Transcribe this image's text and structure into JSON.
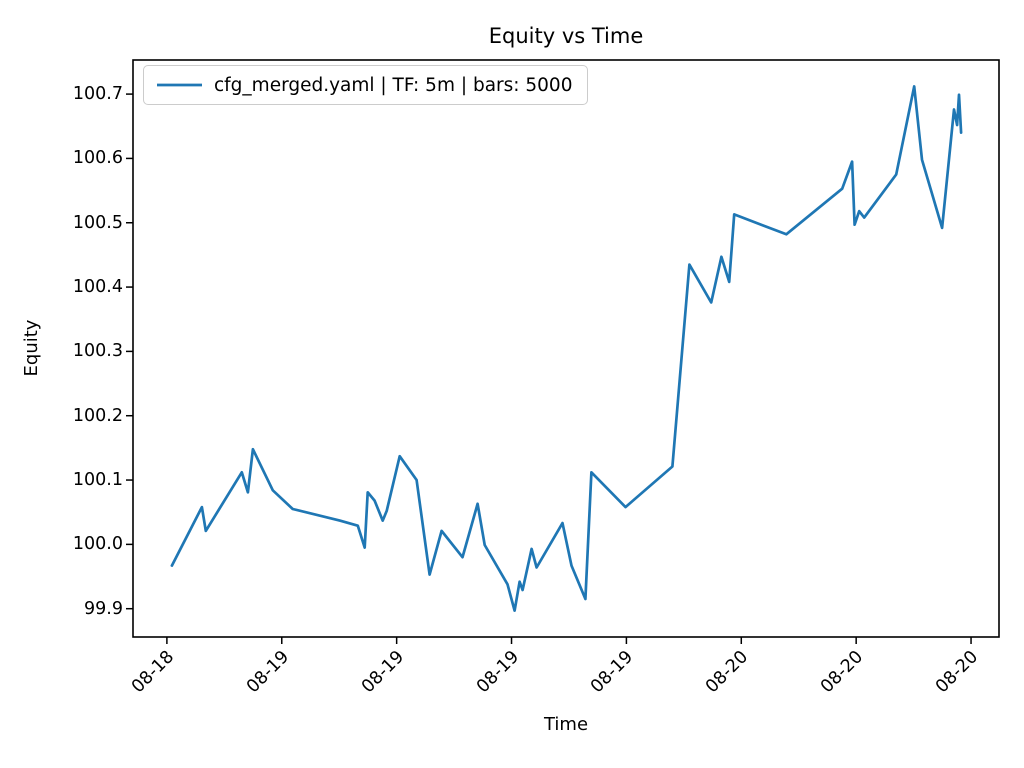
{
  "figure": {
    "title": "Equity vs Time",
    "xlabel": "Time",
    "ylabel": "Equity",
    "legend": {
      "label": "cfg_merged.yaml | TF: 5m | bars: 5000"
    },
    "colors": {
      "line": "#1f77b4",
      "spine": "#000000",
      "text": "#000000",
      "legend_border": "#cccccc",
      "background": "#ffffff"
    }
  },
  "chart_data": {
    "type": "line",
    "title": "Equity vs Time",
    "xlabel": "Time",
    "ylabel": "Equity",
    "legend_entries": [
      "cfg_merged.yaml | TF: 5m | bars: 5000"
    ],
    "legend_position": "upper left",
    "grid": false,
    "ylim": [
      99.856,
      100.753
    ],
    "xlim_hours": [
      -1.77,
      43.46
    ],
    "y_ticks": {
      "values": [
        99.9,
        100.0,
        100.1,
        100.2,
        100.3,
        100.4,
        100.5,
        100.6,
        100.7
      ],
      "labels": [
        "99.9",
        "100.0",
        "100.1",
        "100.2",
        "100.3",
        "100.4",
        "100.5",
        "100.6",
        "100.7"
      ]
    },
    "x_ticks": {
      "positions_hours": [
        0,
        6,
        12,
        18,
        24,
        30,
        36,
        42
      ],
      "labels": [
        "08-18",
        "08-19",
        "08-19",
        "08-19",
        "08-19",
        "08-20",
        "08-20",
        "08-20"
      ],
      "rotation_deg": 45
    },
    "series": [
      {
        "name": "cfg_merged.yaml | TF: 5m | bars: 5000",
        "color": "#1f77b4",
        "points": [
          [
            0.26,
            99.967
          ],
          [
            1.83,
            100.058
          ],
          [
            2.03,
            100.021
          ],
          [
            3.91,
            100.112
          ],
          [
            4.23,
            100.081
          ],
          [
            4.49,
            100.148
          ],
          [
            5.53,
            100.084
          ],
          [
            6.57,
            100.055
          ],
          [
            9.03,
            100.037
          ],
          [
            9.97,
            100.029
          ],
          [
            10.33,
            99.995
          ],
          [
            10.49,
            100.081
          ],
          [
            10.85,
            100.068
          ],
          [
            11.27,
            100.037
          ],
          [
            11.48,
            100.052
          ],
          [
            12.16,
            100.137
          ],
          [
            13.04,
            100.1
          ],
          [
            13.72,
            99.953
          ],
          [
            14.35,
            100.021
          ],
          [
            15.44,
            99.98
          ],
          [
            16.23,
            100.063
          ],
          [
            16.6,
            99.999
          ],
          [
            17.79,
            99.938
          ],
          [
            18.16,
            99.897
          ],
          [
            18.42,
            99.942
          ],
          [
            18.58,
            99.929
          ],
          [
            19.05,
            99.993
          ],
          [
            19.31,
            99.964
          ],
          [
            20.66,
            100.033
          ],
          [
            21.13,
            99.967
          ],
          [
            21.86,
            99.915
          ],
          [
            22.17,
            100.112
          ],
          [
            23.95,
            100.058
          ],
          [
            26.4,
            100.121
          ],
          [
            27.29,
            100.435
          ],
          [
            28.43,
            100.376
          ],
          [
            28.96,
            100.447
          ],
          [
            29.37,
            100.408
          ],
          [
            29.63,
            100.513
          ],
          [
            32.35,
            100.482
          ],
          [
            35.27,
            100.553
          ],
          [
            35.79,
            100.595
          ],
          [
            35.92,
            100.497
          ],
          [
            36.16,
            100.518
          ],
          [
            36.42,
            100.508
          ],
          [
            38.09,
            100.575
          ],
          [
            39.03,
            100.712
          ],
          [
            39.44,
            100.598
          ],
          [
            40.49,
            100.492
          ],
          [
            41.11,
            100.676
          ],
          [
            41.27,
            100.652
          ],
          [
            41.37,
            100.699
          ],
          [
            41.48,
            100.64
          ]
        ]
      }
    ]
  }
}
